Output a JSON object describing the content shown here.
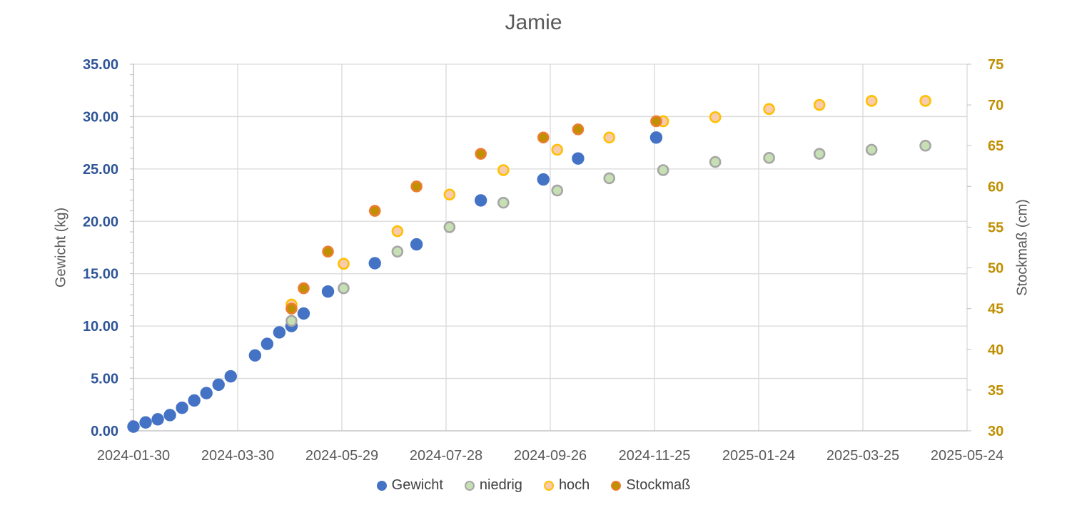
{
  "chart": {
    "title": "Jamie",
    "colors": {
      "title_text": "#595959",
      "axis_title_text": "#595959",
      "left_tick_text": "#2F5597",
      "right_tick_text": "#BF8F00",
      "x_tick_text": "#595959",
      "legend_text": "#404040",
      "gridline": "#D9D9D9",
      "axis_line": "#BFBFBF",
      "background": "#FFFFFF"
    }
  },
  "chart_data": {
    "type": "scatter",
    "title": "Jamie",
    "xlabel": "",
    "ylabel_left": "Gewicht (kg)",
    "ylabel_right": "Stockmaß (cm)",
    "grid": true,
    "legend_position": "bottom",
    "x_axis": {
      "type": "date",
      "min": "2024-01-30",
      "max": "2025-05-24",
      "tick_interval_days": 60,
      "tick_labels": [
        "2024-01-30",
        "2024-03-30",
        "2024-05-29",
        "2024-07-28",
        "2024-09-26",
        "2024-11-25",
        "2025-01-24",
        "2025-03-25",
        "2025-05-24"
      ]
    },
    "y_axis_left": {
      "min": 0,
      "max": 35,
      "step": 5,
      "minor_step": 1,
      "decimals": 2
    },
    "y_axis_right": {
      "min": 30,
      "max": 75,
      "step": 5,
      "decimals": 0
    },
    "series": [
      {
        "name": "Gewicht",
        "axis": "left",
        "marker_fill": "#4472C4",
        "marker_stroke": "#4472C4",
        "points": [
          [
            "2024-01-30",
            0.4
          ],
          [
            "2024-02-06",
            0.8
          ],
          [
            "2024-02-13",
            1.1
          ],
          [
            "2024-02-20",
            1.5
          ],
          [
            "2024-02-27",
            2.2
          ],
          [
            "2024-03-05",
            2.9
          ],
          [
            "2024-03-12",
            3.6
          ],
          [
            "2024-03-19",
            4.4
          ],
          [
            "2024-03-26",
            5.2
          ],
          [
            "2024-04-09",
            7.2
          ],
          [
            "2024-04-16",
            8.3
          ],
          [
            "2024-04-23",
            9.4
          ],
          [
            "2024-04-30",
            10.0
          ],
          [
            "2024-05-07",
            11.2
          ],
          [
            "2024-05-21",
            13.3
          ],
          [
            "2024-06-17",
            16.0
          ],
          [
            "2024-07-11",
            17.8
          ],
          [
            "2024-08-17",
            22.0
          ],
          [
            "2024-09-22",
            24.0
          ],
          [
            "2024-10-12",
            26.0
          ],
          [
            "2024-11-26",
            28.0
          ]
        ]
      },
      {
        "name": "niedrig",
        "axis": "right",
        "marker_fill": "#C6E0B4",
        "marker_stroke": "#A6A6A6",
        "points": [
          [
            "2024-04-30",
            43.5
          ],
          [
            "2024-05-30",
            47.5
          ],
          [
            "2024-06-30",
            52.0
          ],
          [
            "2024-07-30",
            55.0
          ],
          [
            "2024-08-30",
            58.0
          ],
          [
            "2024-09-30",
            59.5
          ],
          [
            "2024-10-30",
            61.0
          ],
          [
            "2024-11-30",
            62.0
          ],
          [
            "2024-12-30",
            63.0
          ],
          [
            "2025-01-30",
            63.5
          ],
          [
            "2025-02-28",
            64.0
          ],
          [
            "2025-03-30",
            64.5
          ],
          [
            "2025-04-30",
            65.0
          ]
        ]
      },
      {
        "name": "hoch",
        "axis": "right",
        "marker_fill": "#F8CBAD",
        "marker_stroke": "#FFC000",
        "points": [
          [
            "2024-04-30",
            45.5
          ],
          [
            "2024-05-30",
            50.5
          ],
          [
            "2024-06-30",
            54.5
          ],
          [
            "2024-07-30",
            59.0
          ],
          [
            "2024-08-30",
            62.0
          ],
          [
            "2024-09-30",
            64.5
          ],
          [
            "2024-10-30",
            66.0
          ],
          [
            "2024-11-30",
            68.0
          ],
          [
            "2024-12-30",
            68.5
          ],
          [
            "2025-01-30",
            69.5
          ],
          [
            "2025-02-28",
            70.0
          ],
          [
            "2025-03-30",
            70.5
          ],
          [
            "2025-04-30",
            70.5
          ]
        ]
      },
      {
        "name": "Stockmaß",
        "axis": "right",
        "marker_fill": "#BF9000",
        "marker_stroke": "#ED7D31",
        "points": [
          [
            "2024-04-30",
            45.0
          ],
          [
            "2024-05-07",
            47.5
          ],
          [
            "2024-05-21",
            52.0
          ],
          [
            "2024-06-17",
            57.0
          ],
          [
            "2024-07-11",
            60.0
          ],
          [
            "2024-08-17",
            64.0
          ],
          [
            "2024-09-22",
            66.0
          ],
          [
            "2024-10-12",
            67.0
          ],
          [
            "2024-11-26",
            68.0
          ]
        ]
      }
    ]
  }
}
